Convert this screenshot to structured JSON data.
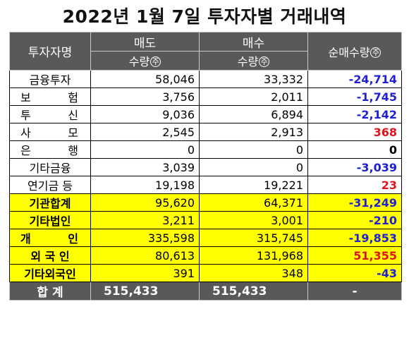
{
  "title": "2022년 1월 7일 투자자별 거래내역",
  "headers": {
    "investor": "투자자명",
    "sell": "매도",
    "buy": "매수",
    "qty": "수량",
    "net": "순매수량",
    "unit": "주"
  },
  "rows": [
    {
      "name": "금융투자",
      "sell": "58,046",
      "buy": "33,332",
      "net": "-24,714",
      "net_color": "blue",
      "highlight": false
    },
    {
      "name": "보 험",
      "sell": "3,756",
      "buy": "2,011",
      "net": "-1,745",
      "net_color": "blue",
      "highlight": false
    },
    {
      "name": "투 신",
      "sell": "9,036",
      "buy": "6,894",
      "net": "-2,142",
      "net_color": "blue",
      "highlight": false
    },
    {
      "name": "사 모",
      "sell": "2,545",
      "buy": "2,913",
      "net": "368",
      "net_color": "red",
      "highlight": false
    },
    {
      "name": "은 행",
      "sell": "0",
      "buy": "0",
      "net": "0",
      "net_color": "black",
      "highlight": false
    },
    {
      "name": "기타금융",
      "sell": "3,039",
      "buy": "0",
      "net": "-3,039",
      "net_color": "blue",
      "highlight": false
    },
    {
      "name": "연기금 등",
      "sell": "19,198",
      "buy": "19,221",
      "net": "23",
      "net_color": "red",
      "highlight": false
    },
    {
      "name": "기관합계",
      "sell": "95,620",
      "buy": "64,371",
      "net": "-31,249",
      "net_color": "blue",
      "highlight": true
    },
    {
      "name": "기타법인",
      "sell": "3,211",
      "buy": "3,001",
      "net": "-210",
      "net_color": "blue",
      "highlight": true
    },
    {
      "name": "개 인",
      "sell": "335,598",
      "buy": "315,745",
      "net": "-19,853",
      "net_color": "blue",
      "highlight": true
    },
    {
      "name": "외 국 인",
      "sell": "80,613",
      "buy": "131,968",
      "net": "51,355",
      "net_color": "red",
      "highlight": true
    },
    {
      "name": "기타외국인",
      "sell": "391",
      "buy": "348",
      "net": "-43",
      "net_color": "blue",
      "highlight": true
    }
  ],
  "total": {
    "name": "합 계",
    "sell": "515,433",
    "buy": "515,433",
    "net": "-"
  }
}
